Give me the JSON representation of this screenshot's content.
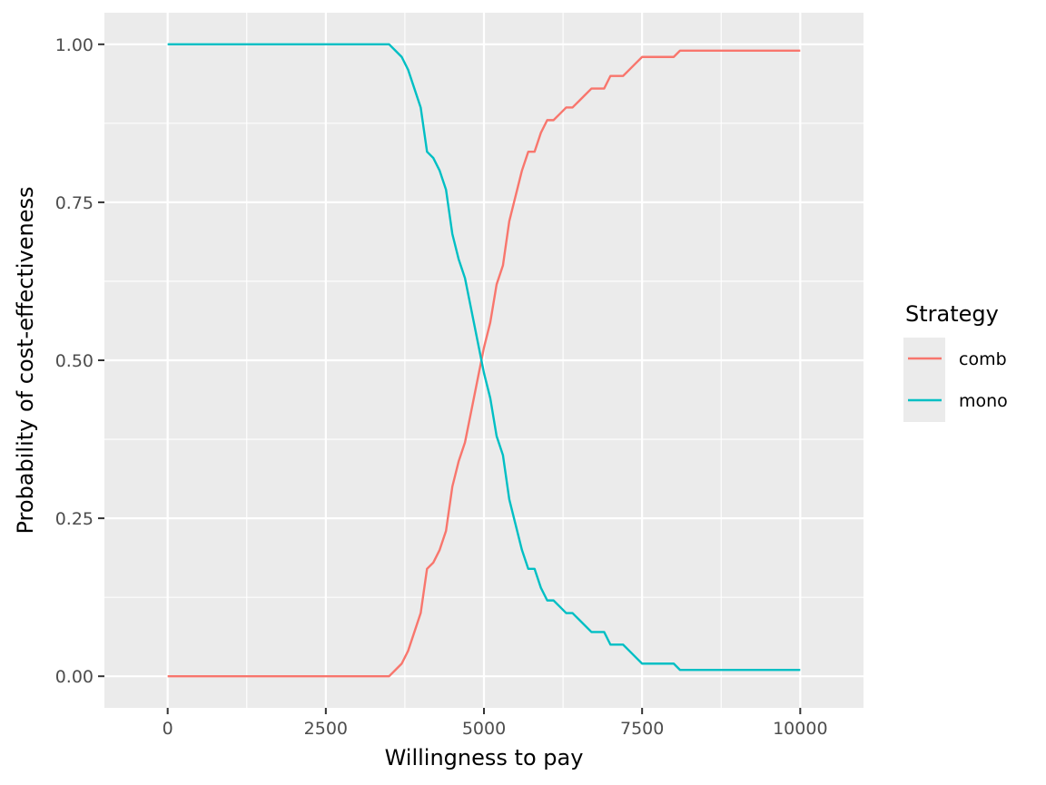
{
  "chart_data": {
    "type": "line",
    "xlabel": "Willingness to pay",
    "ylabel": "Probability of cost-effectiveness",
    "xlim": [
      -1000,
      11000
    ],
    "ylim": [
      -0.05,
      1.05
    ],
    "x_ticks": [
      0,
      2500,
      5000,
      7500,
      10000
    ],
    "x_tick_labels": [
      "0",
      "2500",
      "5000",
      "7500",
      "10000"
    ],
    "y_ticks": [
      0,
      0.25,
      0.5,
      0.75,
      1.0
    ],
    "y_tick_labels": [
      "0.00",
      "0.25",
      "0.50",
      "0.75",
      "1.00"
    ],
    "grid": true,
    "legend_position": "right",
    "legend": {
      "title": "Strategy",
      "entries": [
        {
          "label": "comb",
          "color": "#F8766D"
        },
        {
          "label": "mono",
          "color": "#00BFC4"
        }
      ]
    },
    "x": [
      0,
      100,
      200,
      300,
      400,
      500,
      600,
      700,
      800,
      900,
      1000,
      1100,
      1200,
      1300,
      1400,
      1500,
      1600,
      1700,
      1800,
      1900,
      2000,
      2100,
      2200,
      2300,
      2400,
      2500,
      2600,
      2700,
      2800,
      2900,
      3000,
      3100,
      3200,
      3300,
      3400,
      3500,
      3600,
      3700,
      3800,
      3900,
      4000,
      4100,
      4200,
      4300,
      4400,
      4500,
      4600,
      4700,
      4800,
      4900,
      5000,
      5100,
      5200,
      5300,
      5400,
      5500,
      5600,
      5700,
      5800,
      5900,
      6000,
      6100,
      6200,
      6300,
      6400,
      6500,
      6600,
      6700,
      6800,
      6900,
      7000,
      7100,
      7200,
      7300,
      7400,
      7500,
      7600,
      7700,
      7800,
      7900,
      8000,
      8100,
      8200,
      8300,
      8400,
      8500,
      8600,
      8700,
      8800,
      8900,
      9000,
      9100,
      9200,
      9300,
      9400,
      9500,
      9600,
      9700,
      9800,
      9900,
      10000
    ],
    "series": [
      {
        "name": "comb",
        "color": "#F8766D",
        "values": [
          0,
          0,
          0,
          0,
          0,
          0,
          0,
          0,
          0,
          0,
          0,
          0,
          0,
          0,
          0,
          0,
          0,
          0,
          0,
          0,
          0,
          0,
          0,
          0,
          0,
          0,
          0,
          0,
          0,
          0,
          0,
          0,
          0,
          0,
          0,
          0,
          0.01,
          0.02,
          0.04,
          0.07,
          0.1,
          0.17,
          0.18,
          0.2,
          0.23,
          0.3,
          0.34,
          0.37,
          0.42,
          0.47,
          0.52,
          0.56,
          0.62,
          0.65,
          0.72,
          0.76,
          0.8,
          0.83,
          0.83,
          0.86,
          0.88,
          0.88,
          0.89,
          0.9,
          0.9,
          0.91,
          0.92,
          0.93,
          0.93,
          0.93,
          0.95,
          0.95,
          0.95,
          0.96,
          0.97,
          0.98,
          0.98,
          0.98,
          0.98,
          0.98,
          0.98,
          0.99,
          0.99,
          0.99,
          0.99,
          0.99,
          0.99,
          0.99,
          0.99,
          0.99,
          0.99,
          0.99,
          0.99,
          0.99,
          0.99,
          0.99,
          0.99,
          0.99,
          0.99,
          0.99,
          0.99
        ]
      },
      {
        "name": "mono",
        "color": "#00BFC4",
        "values": [
          1,
          1,
          1,
          1,
          1,
          1,
          1,
          1,
          1,
          1,
          1,
          1,
          1,
          1,
          1,
          1,
          1,
          1,
          1,
          1,
          1,
          1,
          1,
          1,
          1,
          1,
          1,
          1,
          1,
          1,
          1,
          1,
          1,
          1,
          1,
          1,
          0.99,
          0.98,
          0.96,
          0.93,
          0.9,
          0.83,
          0.82,
          0.8,
          0.77,
          0.7,
          0.66,
          0.63,
          0.58,
          0.53,
          0.48,
          0.44,
          0.38,
          0.35,
          0.28,
          0.24,
          0.2,
          0.17,
          0.17,
          0.14,
          0.12,
          0.12,
          0.11,
          0.1,
          0.1,
          0.09,
          0.08,
          0.07,
          0.07,
          0.07,
          0.05,
          0.05,
          0.05,
          0.04,
          0.03,
          0.02,
          0.02,
          0.02,
          0.02,
          0.02,
          0.02,
          0.01,
          0.01,
          0.01,
          0.01,
          0.01,
          0.01,
          0.01,
          0.01,
          0.01,
          0.01,
          0.01,
          0.01,
          0.01,
          0.01,
          0.01,
          0.01,
          0.01,
          0.01,
          0.01,
          0.01
        ]
      }
    ]
  }
}
